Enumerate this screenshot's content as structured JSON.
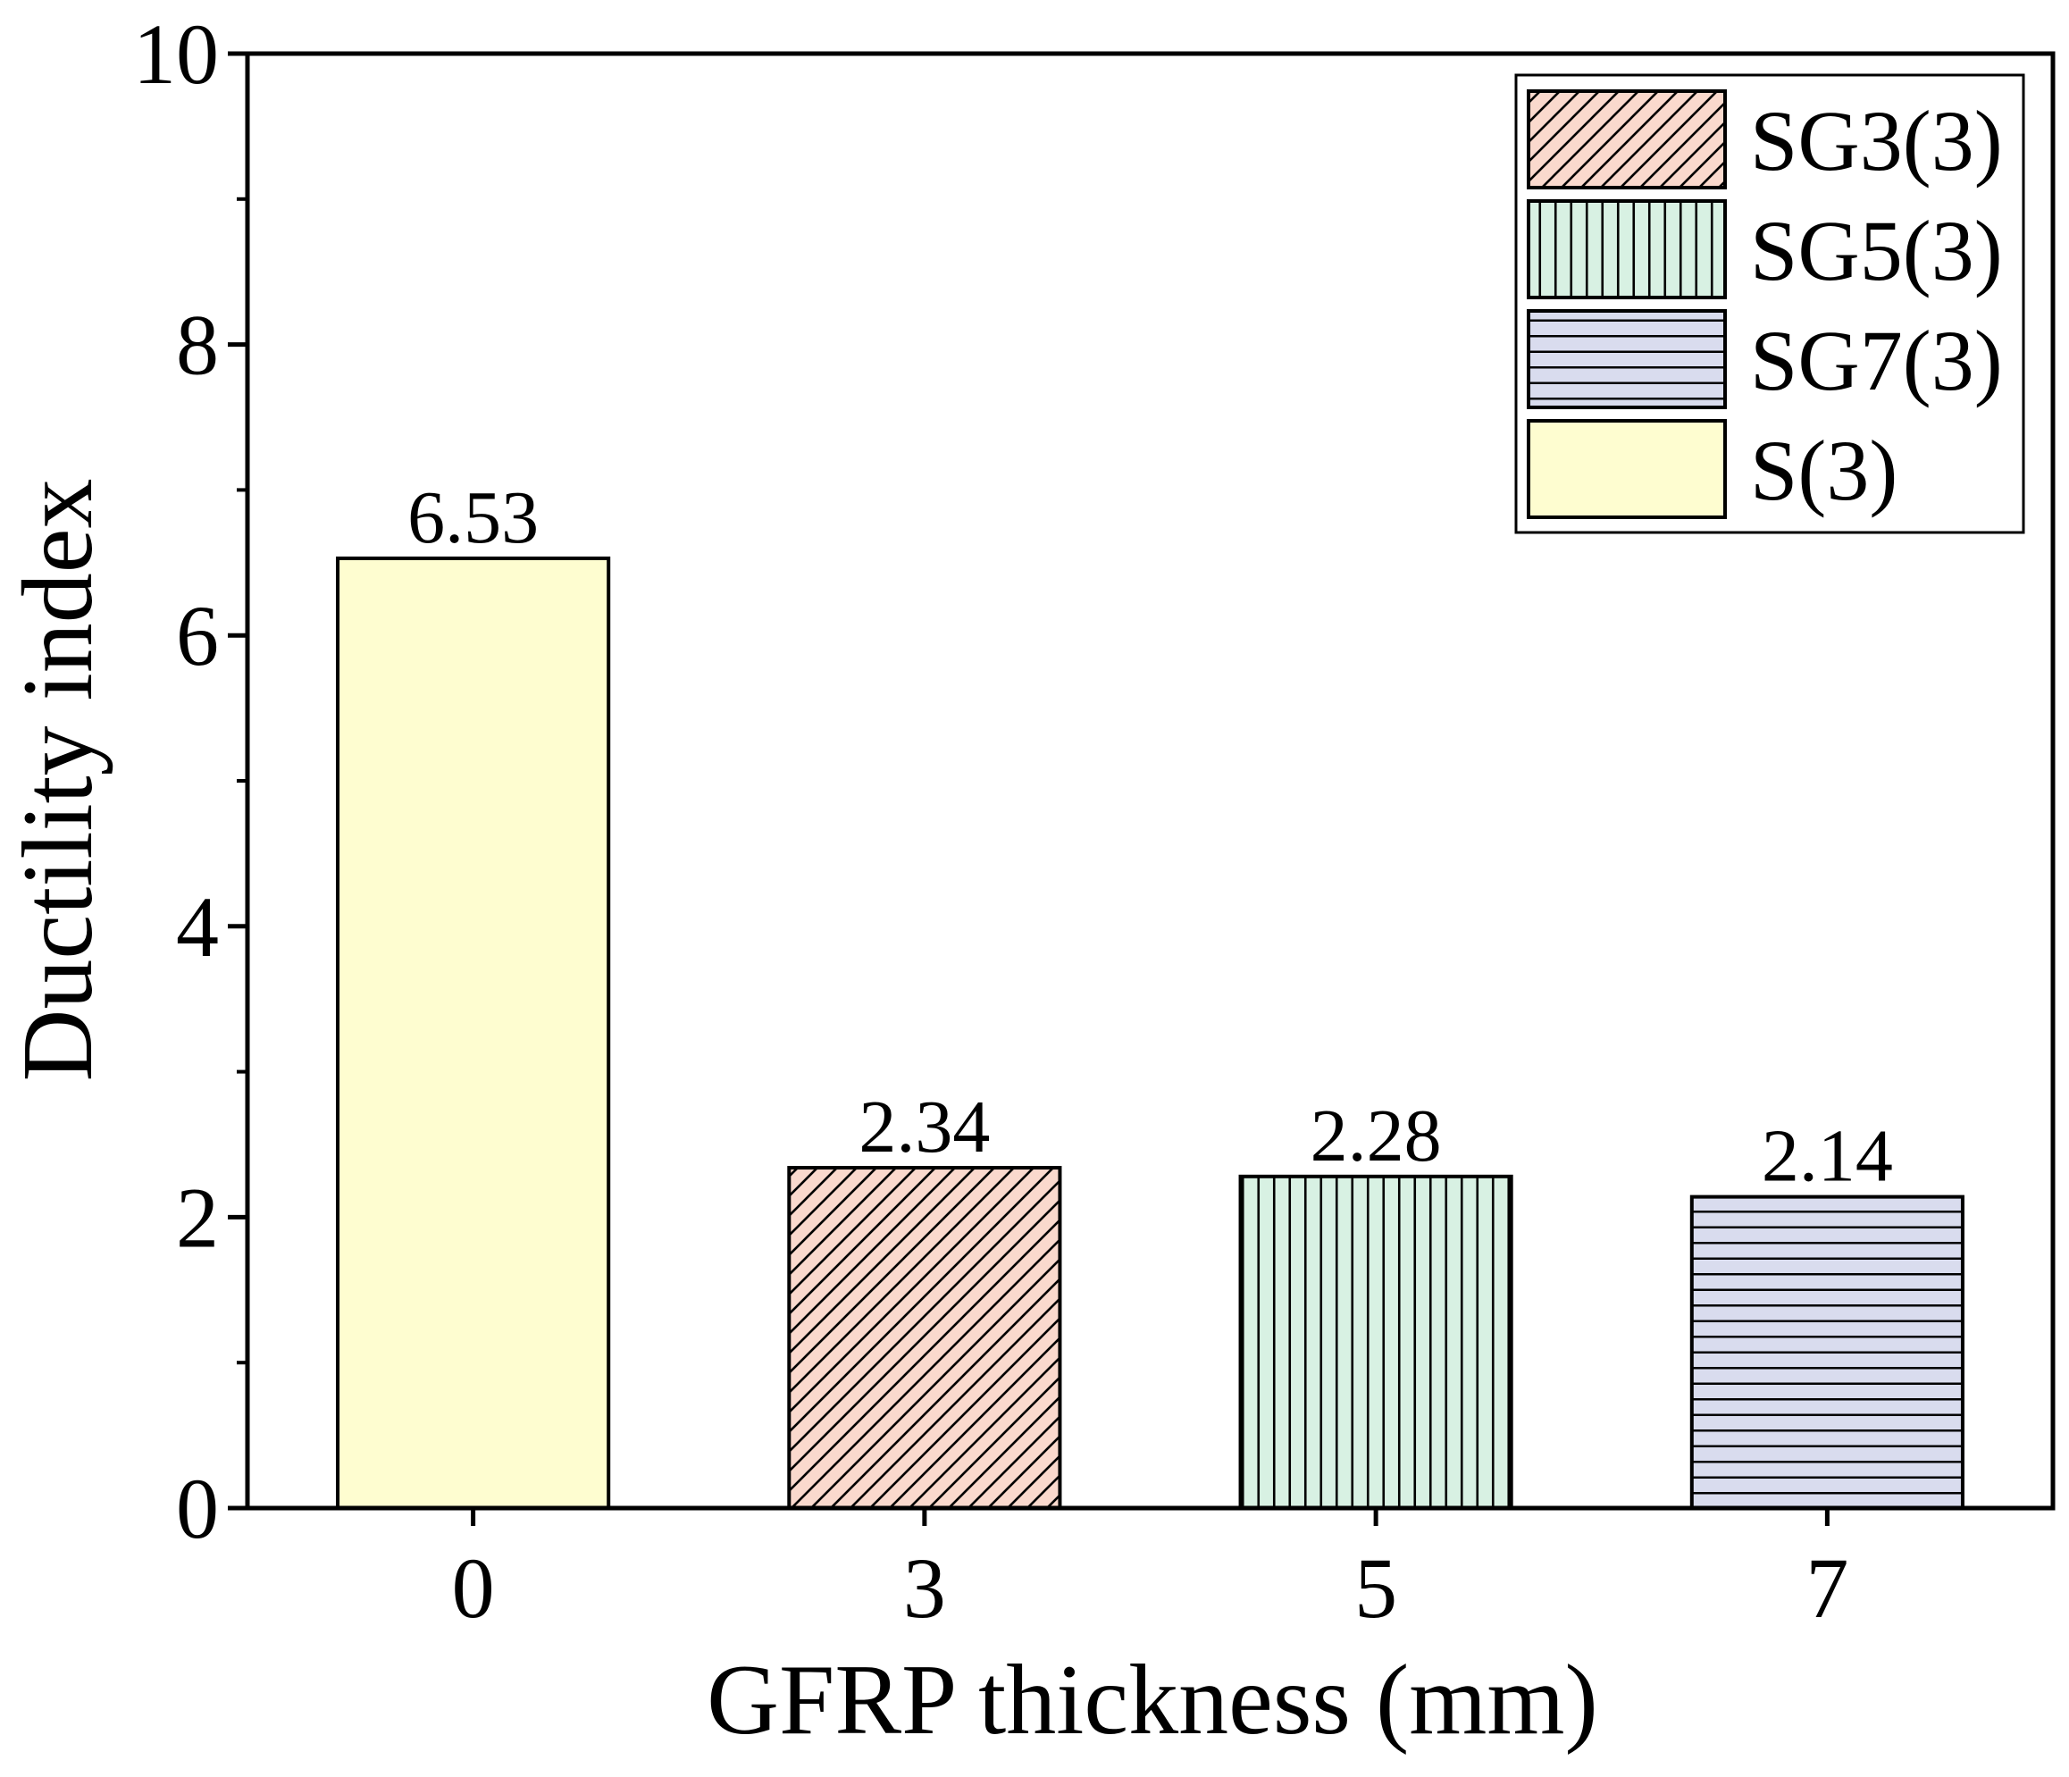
{
  "chart_data": {
    "type": "bar",
    "title": "",
    "xlabel": "GFRP thickness (mm)",
    "ylabel": "Ductility index",
    "categories": [
      "0",
      "3",
      "5",
      "7"
    ],
    "values": [
      6.53,
      2.34,
      2.28,
      2.14
    ],
    "data_labels": [
      "6.53",
      "2.34",
      "2.28",
      "2.14"
    ],
    "series_names": [
      "S(3)",
      "SG3(3)",
      "SG5(3)",
      "SG7(3)"
    ],
    "ylim": [
      0,
      10
    ],
    "yticks": [
      0,
      2,
      4,
      6,
      8,
      10
    ],
    "ytick_labels": [
      "0",
      "2",
      "4",
      "6",
      "8",
      "10"
    ],
    "grid": false,
    "legend": {
      "position": "top-right",
      "entries": [
        {
          "label": "SG3(3)",
          "pattern": "diagonal",
          "color": "#fad9cd"
        },
        {
          "label": "SG5(3)",
          "pattern": "vertical",
          "color": "#d8f1e3"
        },
        {
          "label": "SG7(3)",
          "pattern": "horizontal",
          "color": "#d9dcee"
        },
        {
          "label": "S(3)",
          "pattern": "solid",
          "color": "#fefdd0"
        }
      ]
    },
    "bar_styles": [
      {
        "pattern": "solid",
        "color": "#fefdd0"
      },
      {
        "pattern": "diagonal",
        "color": "#fad9cd"
      },
      {
        "pattern": "vertical",
        "color": "#d8f1e3"
      },
      {
        "pattern": "horizontal",
        "color": "#d9dcee"
      }
    ]
  }
}
